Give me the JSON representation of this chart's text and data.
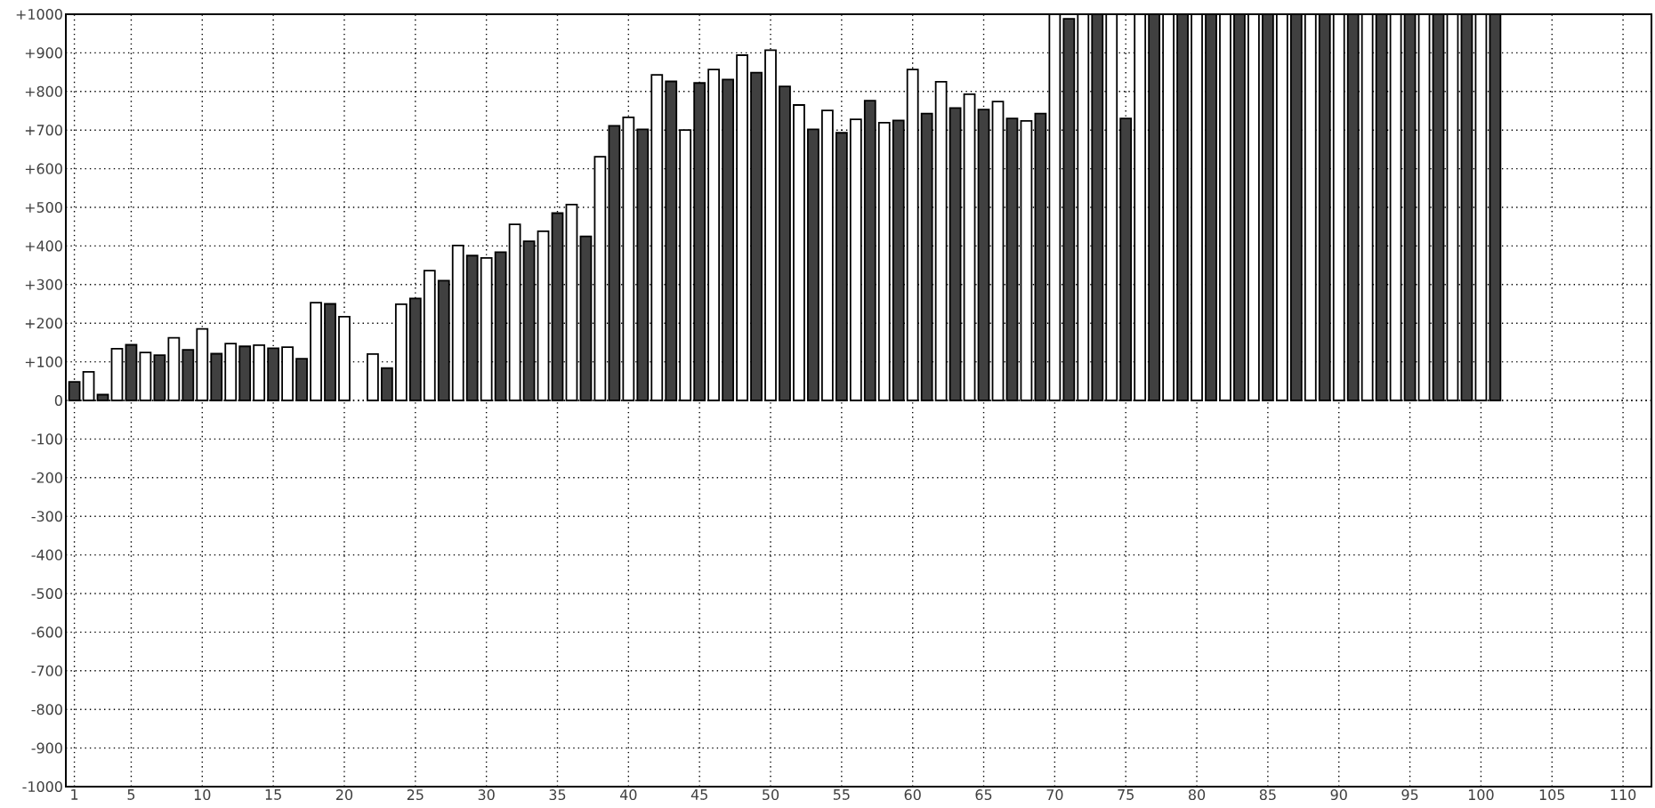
{
  "chart_data": {
    "type": "bar",
    "x": [
      1,
      2,
      3,
      4,
      5,
      6,
      7,
      8,
      9,
      10,
      11,
      12,
      13,
      14,
      15,
      16,
      17,
      18,
      19,
      20,
      21,
      22,
      23,
      24,
      25,
      26,
      27,
      28,
      29,
      30,
      31,
      32,
      33,
      34,
      35,
      36,
      37,
      38,
      39,
      40,
      41,
      42,
      43,
      44,
      45,
      46,
      47,
      48,
      49,
      50,
      51,
      52,
      53,
      54,
      55,
      56,
      57,
      58,
      59,
      60,
      61,
      62,
      63,
      64,
      65,
      66,
      67,
      68,
      69,
      70,
      71,
      72,
      73,
      74,
      75,
      76,
      77,
      78,
      79,
      80,
      81,
      82,
      83,
      84,
      85,
      86,
      87,
      88,
      89,
      90,
      91,
      92,
      93,
      94,
      95,
      96,
      97,
      98,
      99,
      100,
      101
    ],
    "values": [
      48,
      74,
      15,
      134,
      144,
      124,
      117,
      162,
      131,
      185,
      121,
      147,
      140,
      143,
      135,
      138,
      108,
      253,
      250,
      217,
      null,
      120,
      84,
      249,
      264,
      336,
      310,
      401,
      375,
      369,
      384,
      456,
      412,
      438,
      485,
      507,
      425,
      631,
      711,
      733,
      702,
      843,
      826,
      700,
      822,
      857,
      831,
      894,
      849,
      907,
      813,
      765,
      702,
      751,
      693,
      728,
      776,
      719,
      725,
      857,
      743,
      825,
      757,
      793,
      753,
      774,
      730,
      724,
      743,
      1000,
      988,
      1000,
      1000,
      1000,
      730,
      1000,
      1000,
      1000,
      1000,
      1000,
      1000,
      1000,
      1000,
      1000,
      1000,
      1000,
      1000,
      1000,
      1000,
      1000,
      1000,
      1000,
      1000,
      1000,
      1000,
      1000,
      1000,
      1000,
      1000,
      1000,
      1000
    ],
    "colors": [
      "#404040",
      "#ffffff",
      "#404040",
      "#ffffff",
      "#404040",
      "#ffffff",
      "#404040",
      "#ffffff",
      "#404040",
      "#ffffff",
      "#404040",
      "#ffffff",
      "#404040",
      "#ffffff",
      "#404040",
      "#ffffff",
      "#404040",
      "#ffffff",
      "#404040",
      "#ffffff",
      "#404040",
      "#ffffff",
      "#404040",
      "#ffffff",
      "#404040",
      "#ffffff",
      "#404040",
      "#ffffff",
      "#404040",
      "#ffffff",
      "#404040",
      "#ffffff",
      "#404040",
      "#ffffff",
      "#404040",
      "#ffffff",
      "#404040",
      "#ffffff",
      "#404040",
      "#ffffff",
      "#404040",
      "#ffffff",
      "#404040",
      "#ffffff",
      "#404040",
      "#ffffff",
      "#404040",
      "#ffffff",
      "#404040",
      "#ffffff",
      "#404040",
      "#ffffff",
      "#404040",
      "#ffffff",
      "#404040",
      "#ffffff",
      "#404040",
      "#ffffff",
      "#404040",
      "#ffffff",
      "#404040",
      "#ffffff",
      "#404040",
      "#ffffff",
      "#404040",
      "#ffffff",
      "#404040",
      "#ffffff",
      "#404040",
      "#ffffff",
      "#404040",
      "#ffffff",
      "#404040",
      "#ffffff",
      "#404040",
      "#ffffff",
      "#404040",
      "#ffffff",
      "#404040",
      "#ffffff",
      "#404040",
      "#ffffff",
      "#404040",
      "#ffffff",
      "#404040",
      "#ffffff",
      "#404040",
      "#ffffff",
      "#404040",
      "#ffffff",
      "#404040",
      "#ffffff",
      "#404040",
      "#ffffff",
      "#404040",
      "#ffffff",
      "#404040",
      "#ffffff",
      "#404040",
      "#ffffff",
      "#404040"
    ],
    "xlim": [
      0.4,
      112
    ],
    "xticks": [
      1,
      5,
      10,
      15,
      20,
      25,
      30,
      35,
      40,
      45,
      50,
      55,
      60,
      65,
      70,
      75,
      80,
      85,
      90,
      95,
      100,
      105,
      110
    ],
    "ylim": [
      -1000,
      1000
    ],
    "yticks": [
      {
        "value": -1000,
        "label": "-1000"
      },
      {
        "value": -900,
        "label": "-900"
      },
      {
        "value": -800,
        "label": "-800"
      },
      {
        "value": -700,
        "label": "-700"
      },
      {
        "value": -600,
        "label": "-600"
      },
      {
        "value": -500,
        "label": "-500"
      },
      {
        "value": -400,
        "label": "-400"
      },
      {
        "value": -300,
        "label": "-300"
      },
      {
        "value": -200,
        "label": "-200"
      },
      {
        "value": -100,
        "label": "-100"
      },
      {
        "value": 0,
        "label": "0"
      },
      {
        "value": 100,
        "label": "+100"
      },
      {
        "value": 200,
        "label": "+200"
      },
      {
        "value": 300,
        "label": "+300"
      },
      {
        "value": 400,
        "label": "+400"
      },
      {
        "value": 500,
        "label": "+500"
      },
      {
        "value": 600,
        "label": "+600"
      },
      {
        "value": 700,
        "label": "+700"
      },
      {
        "value": 800,
        "label": "+800"
      },
      {
        "value": 900,
        "label": "+900"
      },
      {
        "value": 1000,
        "label": "+1000"
      }
    ],
    "grid": true
  }
}
